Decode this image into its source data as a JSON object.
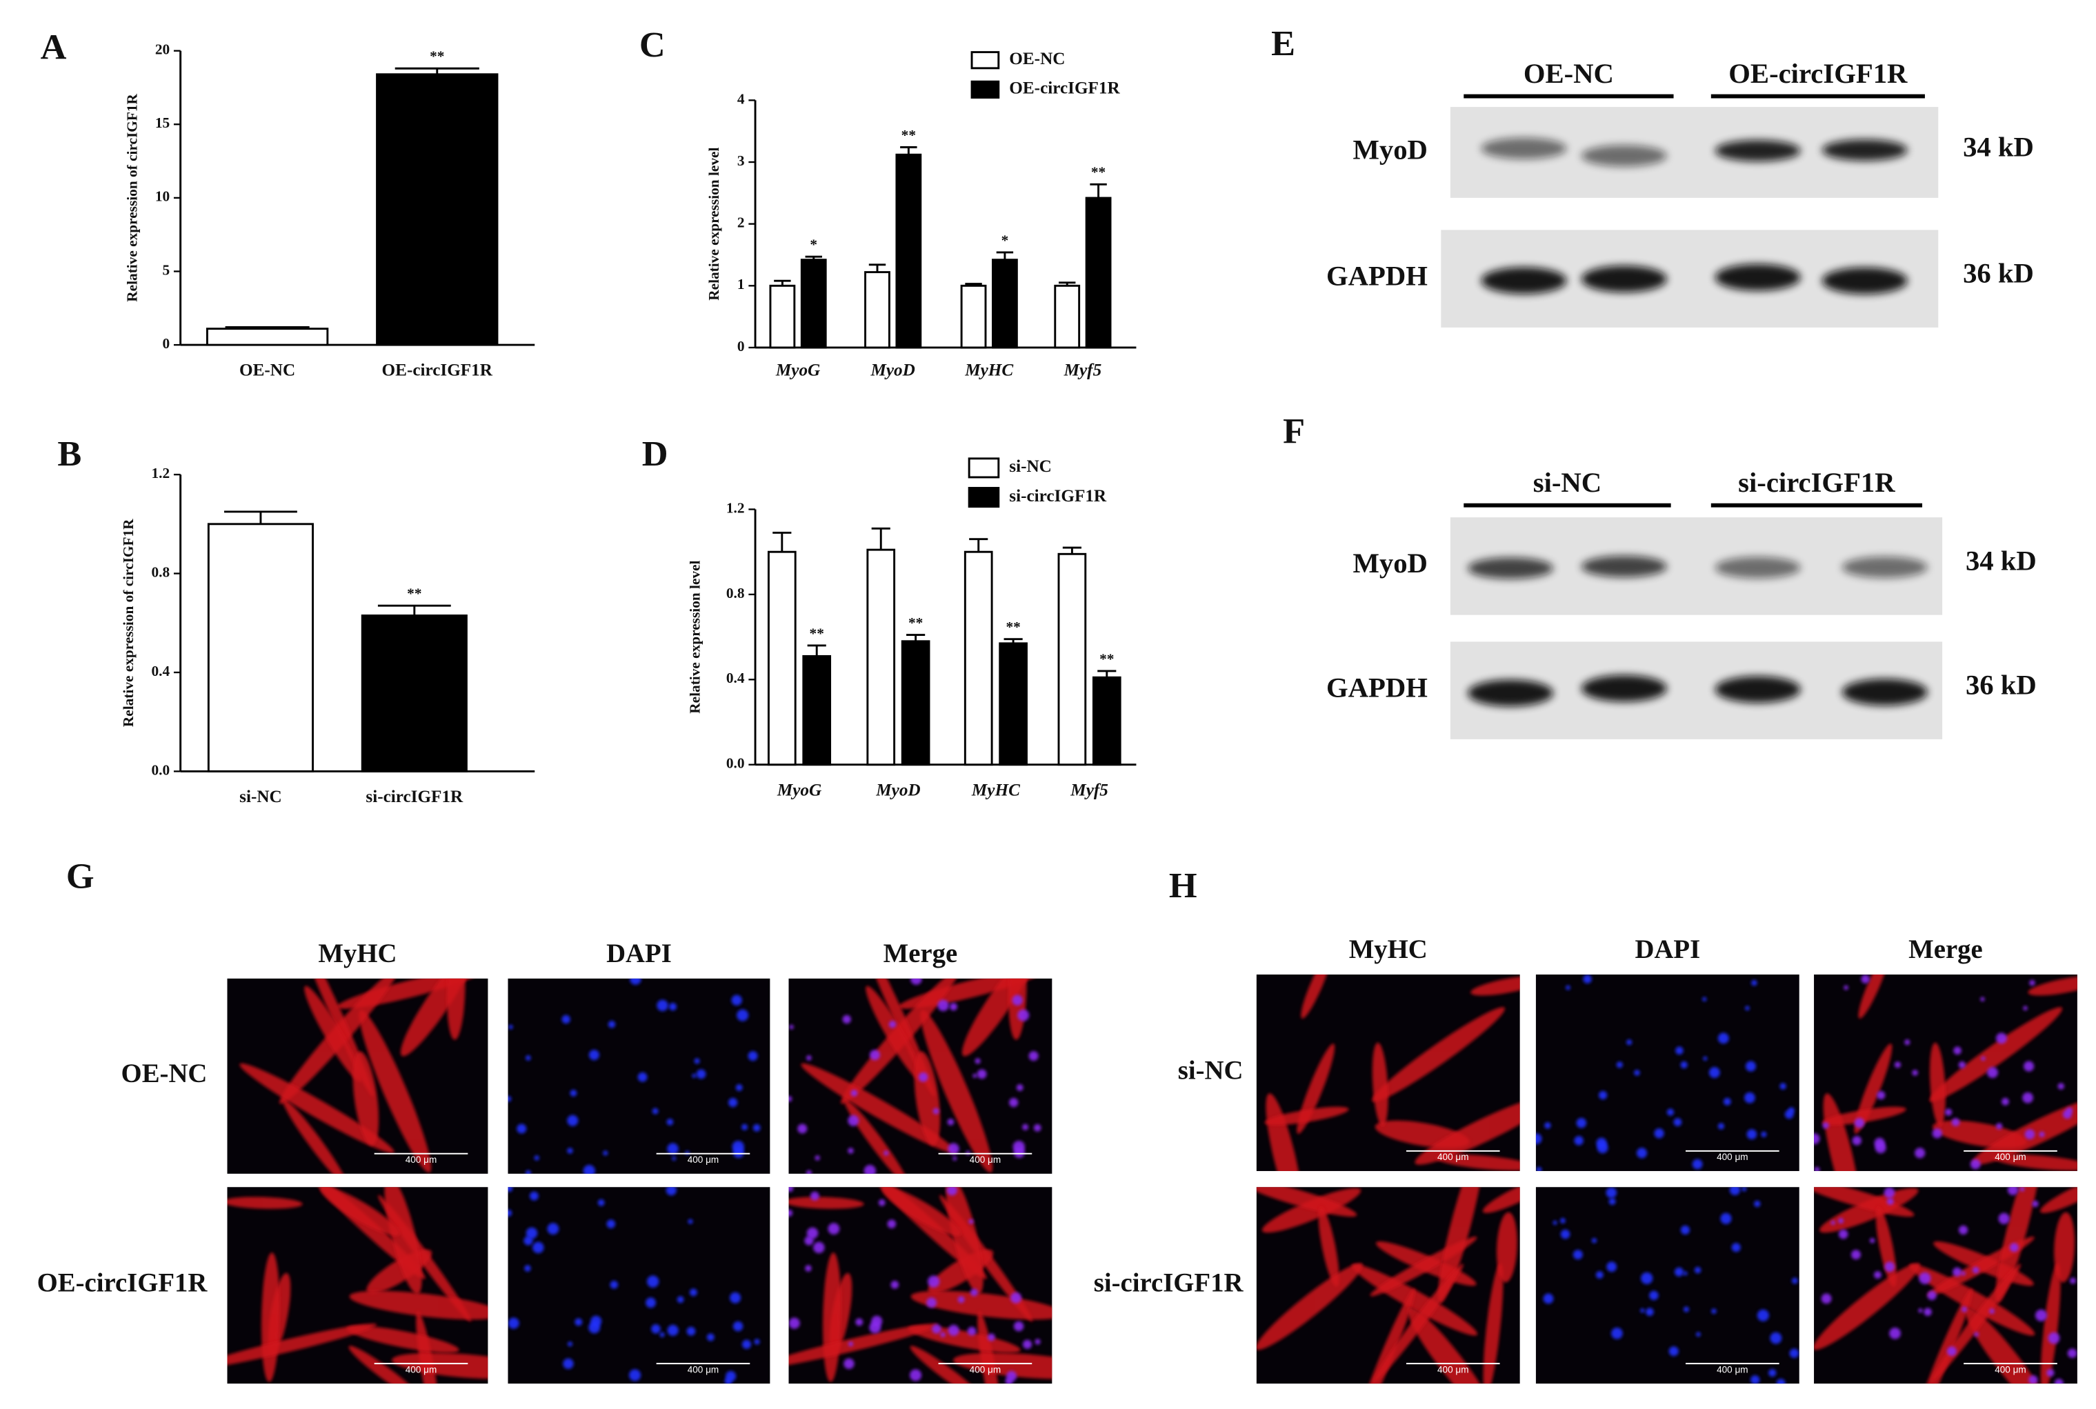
{
  "chart_data": [
    {
      "type": "bar",
      "panel": "A",
      "ylabel": "Relative expression of circIGF1R",
      "categories": [
        "OE-NC",
        "OE-circIGF1R"
      ],
      "values": [
        1.1,
        18.4
      ],
      "errors": [
        0.1,
        0.4
      ],
      "colors": [
        "#ffffff",
        "#000000"
      ],
      "significance": [
        null,
        "**"
      ],
      "ylim": [
        0,
        20
      ],
      "yticks": [
        0,
        5,
        10,
        15,
        20
      ]
    },
    {
      "type": "bar",
      "panel": "B",
      "ylabel": "Relative expression of circIGF1R",
      "categories": [
        "si-NC",
        "si-circIGF1R"
      ],
      "values": [
        1.0,
        0.63
      ],
      "errors": [
        0.05,
        0.04
      ],
      "colors": [
        "#ffffff",
        "#000000"
      ],
      "significance": [
        null,
        "**"
      ],
      "ylim": [
        0,
        1.2
      ],
      "yticks": [
        {
          "value": 0,
          "label": "0.0"
        },
        {
          "value": 0.4,
          "label": "0.4"
        },
        {
          "value": 0.8,
          "label": "0.8"
        },
        {
          "value": 1.2,
          "label": "1.2"
        }
      ]
    },
    {
      "type": "bar",
      "panel": "C",
      "ylabel": "Relative expression level",
      "categories": [
        "MyoG",
        "MyoD",
        "MyHC",
        "Myf5"
      ],
      "series": [
        {
          "name": "OE-NC",
          "color": "#ffffff",
          "values": [
            1.0,
            1.22,
            1.0,
            1.0
          ],
          "errors": [
            0.08,
            0.12,
            0.03,
            0.05
          ]
        },
        {
          "name": "OE-circIGF1R",
          "color": "#000000",
          "values": [
            1.42,
            3.12,
            1.42,
            2.42
          ],
          "errors": [
            0.05,
            0.12,
            0.12,
            0.22
          ],
          "significance": [
            "*",
            "**",
            "*",
            "**"
          ]
        }
      ],
      "ylim": [
        0,
        4
      ],
      "yticks": [
        0,
        1,
        2,
        3,
        4
      ]
    },
    {
      "type": "bar",
      "panel": "D",
      "ylabel": "Relative expression level",
      "categories": [
        "MyoG",
        "MyoD",
        "MyHC",
        "Myf5"
      ],
      "series": [
        {
          "name": "si-NC",
          "color": "#ffffff",
          "values": [
            1.0,
            1.01,
            1.0,
            0.99
          ],
          "errors": [
            0.09,
            0.1,
            0.06,
            0.03
          ]
        },
        {
          "name": "si-circIGF1R",
          "color": "#000000",
          "values": [
            0.51,
            0.58,
            0.57,
            0.41
          ],
          "errors": [
            0.05,
            0.03,
            0.02,
            0.03
          ],
          "significance": [
            "**",
            "**",
            "**",
            "**"
          ]
        }
      ],
      "ylim": [
        0,
        1.2
      ],
      "yticks": [
        {
          "value": 0,
          "label": "0.0"
        },
        {
          "value": 0.4,
          "label": "0.4"
        },
        {
          "value": 0.8,
          "label": "0.8"
        },
        {
          "value": 1.2,
          "label": "1.2"
        }
      ]
    }
  ],
  "blots": [
    {
      "panel": "E",
      "groups": [
        "OE-NC",
        "OE-circIGF1R"
      ],
      "proteins": [
        "MyoD",
        "GAPDH"
      ],
      "sizes": [
        "34 kD",
        "36 kD"
      ]
    },
    {
      "panel": "F",
      "groups": [
        "si-NC",
        "si-circIGF1R"
      ],
      "proteins": [
        "MyoD",
        "GAPDH"
      ],
      "sizes": [
        "34 kD",
        "36 kD"
      ]
    }
  ],
  "micrographs": [
    {
      "panel": "G",
      "columns": [
        "MyHC",
        "DAPI",
        "Merge"
      ],
      "rows": [
        "OE-NC",
        "OE-circIGF1R"
      ],
      "scale_bar": "400 μm"
    },
    {
      "panel": "H",
      "columns": [
        "MyHC",
        "DAPI",
        "Merge"
      ],
      "rows": [
        "si-NC",
        "si-circIGF1R"
      ],
      "scale_bar": "400 μm"
    }
  ]
}
